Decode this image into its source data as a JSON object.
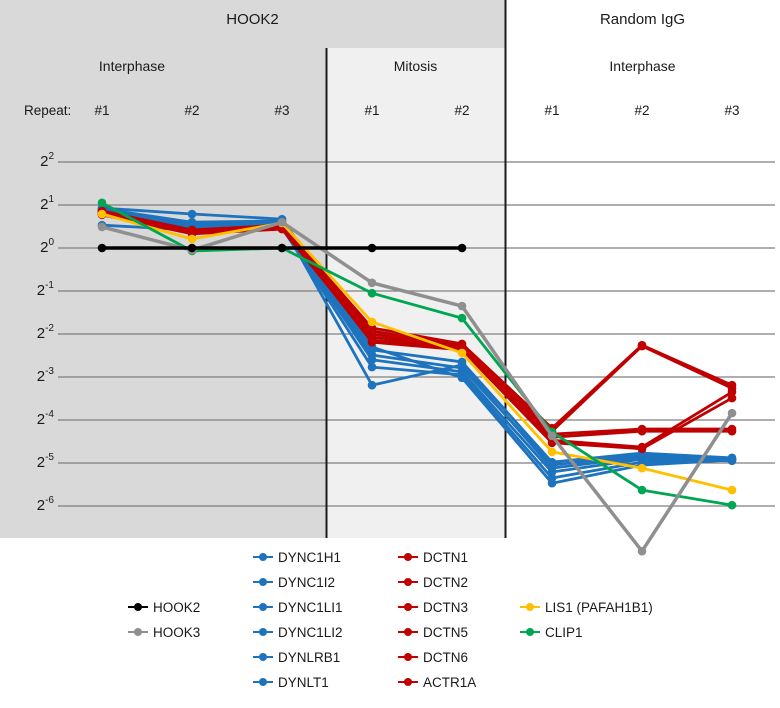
{
  "header": {
    "left_group": "HOOK2",
    "right_group": "Random IgG"
  },
  "subheaders": {
    "left": "Interphase",
    "middle": "Mitosis",
    "right": "Interphase"
  },
  "repeat_row": {
    "label": "Repeat:",
    "columns": [
      "#1",
      "#2",
      "#3",
      "#1",
      "#2",
      "#1",
      "#2",
      "#3"
    ]
  },
  "colors": {
    "hook2": "#000000",
    "hook3": "#8f8f8f",
    "dynein_blue": "#1e73be",
    "dynactin_red": "#c00000",
    "lis1_yellow": "#ffc000",
    "clip1_green": "#00a651",
    "bg_dark": "#d9d9d9",
    "bg_light": "#f0f0f0",
    "gridline": "#7f7f7f",
    "separator": "#1a1a1a"
  },
  "chart_data": {
    "type": "line",
    "y_scale": "log2",
    "y_tick_exponents": [
      2,
      1,
      0,
      -1,
      -2,
      -3,
      -4,
      -5,
      -6
    ],
    "grid": true,
    "column_groups": [
      {
        "group": "HOOK2",
        "phase": "Interphase",
        "repeats": [
          "#1",
          "#2",
          "#3"
        ]
      },
      {
        "group": "HOOK2",
        "phase": "Mitosis",
        "repeats": [
          "#1",
          "#2"
        ]
      },
      {
        "group": "Random IgG",
        "phase": "Interphase",
        "repeats": [
          "#1",
          "#2",
          "#3"
        ]
      }
    ],
    "value_note": "values are log2 exponents (2^e) per column; null = not plotted",
    "series": [
      {
        "name": "HOOK2",
        "color": "#000000",
        "values": [
          0,
          0,
          0,
          0,
          0,
          null,
          null,
          null
        ]
      },
      {
        "name": "HOOK3",
        "color": "#8f8f8f",
        "values": [
          0.49,
          -0.05,
          0.6,
          -0.81,
          -1.35,
          -4.37,
          -7.05,
          -3.84
        ]
      },
      {
        "name": "DYNC1H1",
        "color": "#1e73be",
        "values": [
          0.93,
          0.79,
          0.67,
          -2.3,
          -3.02,
          -5.47,
          -5.05,
          -4.93
        ]
      },
      {
        "name": "DYNC1I2",
        "color": "#1e73be",
        "values": [
          0.91,
          0.6,
          0.63,
          -2.37,
          -2.65,
          -4.98,
          -4.77,
          -4.88
        ]
      },
      {
        "name": "DYNC1LI1",
        "color": "#1e73be",
        "values": [
          0.88,
          0.56,
          0.6,
          -2.49,
          -2.79,
          -5.05,
          -4.81,
          -4.91
        ]
      },
      {
        "name": "DYNC1LI2",
        "color": "#1e73be",
        "values": [
          0.86,
          0.51,
          0.56,
          -3.19,
          -2.72,
          -5.12,
          -4.86,
          -4.93
        ]
      },
      {
        "name": "DYNLRB1",
        "color": "#1e73be",
        "values": [
          0.84,
          0.47,
          0.51,
          -2.6,
          -2.88,
          -5.21,
          -4.91,
          -4.95
        ]
      },
      {
        "name": "DYNLT1",
        "color": "#1e73be",
        "values": [
          0.53,
          0.42,
          0.47,
          -2.77,
          -2.95,
          -5.35,
          -4.98,
          -4.91
        ]
      },
      {
        "name": "DCTN1",
        "color": "#c00000",
        "values": [
          0.86,
          0.42,
          0.53,
          -1.86,
          -2.23,
          -4.19,
          -2.26,
          -3.19
        ]
      },
      {
        "name": "DCTN2",
        "color": "#c00000",
        "values": [
          0.84,
          0.4,
          0.51,
          -1.93,
          -2.28,
          -4.26,
          -2.28,
          -3.26
        ]
      },
      {
        "name": "DCTN3",
        "color": "#c00000",
        "values": [
          0.81,
          0.37,
          0.49,
          -2.0,
          -2.3,
          -4.33,
          -4.21,
          -4.21
        ]
      },
      {
        "name": "DCTN5",
        "color": "#c00000",
        "values": [
          0.79,
          0.35,
          0.47,
          -2.07,
          -2.33,
          -4.4,
          -4.26,
          -4.26
        ]
      },
      {
        "name": "DCTN6",
        "color": "#c00000",
        "values": [
          0.77,
          0.33,
          0.44,
          -2.14,
          -2.35,
          -4.47,
          -4.63,
          -3.35
        ]
      },
      {
        "name": "ACTR1A",
        "color": "#c00000",
        "values": [
          0.8,
          0.38,
          0.5,
          -2.19,
          -2.37,
          -4.53,
          -4.67,
          -3.49
        ]
      },
      {
        "name": "LIS1 (PAFAH1B1)",
        "color": "#ffc000",
        "values": [
          0.79,
          0.21,
          0.58,
          -1.72,
          -2.44,
          -4.74,
          -5.12,
          -5.63
        ]
      },
      {
        "name": "CLIP1",
        "color": "#00a651",
        "values": [
          1.05,
          -0.07,
          0.0,
          -1.05,
          -1.63,
          -4.28,
          -5.63,
          -5.98
        ]
      }
    ]
  },
  "legend": {
    "groups": [
      {
        "items": [
          {
            "label": "HOOK2",
            "color": "#000000"
          },
          {
            "label": "HOOK3",
            "color": "#8f8f8f"
          }
        ]
      },
      {
        "items": [
          {
            "label": "DYNC1H1",
            "color": "#1e73be"
          },
          {
            "label": "DYNC1I2",
            "color": "#1e73be"
          },
          {
            "label": "DYNC1LI1",
            "color": "#1e73be"
          },
          {
            "label": "DYNC1LI2",
            "color": "#1e73be"
          },
          {
            "label": "DYNLRB1",
            "color": "#1e73be"
          },
          {
            "label": "DYNLT1",
            "color": "#1e73be"
          }
        ]
      },
      {
        "items": [
          {
            "label": "DCTN1",
            "color": "#c00000"
          },
          {
            "label": "DCTN2",
            "color": "#c00000"
          },
          {
            "label": "DCTN3",
            "color": "#c00000"
          },
          {
            "label": "DCTN5",
            "color": "#c00000"
          },
          {
            "label": "DCTN6",
            "color": "#c00000"
          },
          {
            "label": "ACTR1A",
            "color": "#c00000"
          }
        ]
      },
      {
        "items": [
          {
            "label": "LIS1 (PAFAH1B1)",
            "color": "#ffc000"
          },
          {
            "label": "CLIP1",
            "color": "#00a651"
          }
        ]
      }
    ]
  }
}
